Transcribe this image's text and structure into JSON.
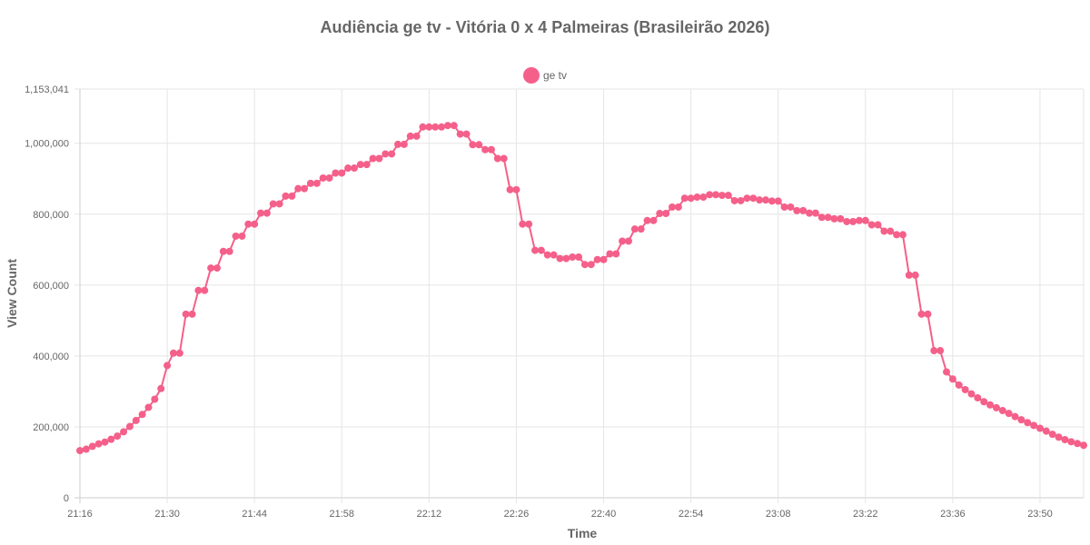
{
  "chart_data": {
    "type": "line",
    "title": "Audiência ge tv - Vitória 0 x 4 Palmeiras (Brasileirão 2026)",
    "xlabel": "Time",
    "ylabel": "View Count",
    "legend_position": "top",
    "grid": true,
    "ylim": [
      0,
      1153041
    ],
    "yticks": [
      "0",
      "200,000",
      "400,000",
      "600,000",
      "800,000",
      "1,000,000",
      "1,153,041"
    ],
    "ytick_values": [
      0,
      200000,
      400000,
      600000,
      800000,
      1000000,
      1153041
    ],
    "xtick_labels": [
      "21:16",
      "21:30",
      "21:44",
      "21:58",
      "22:12",
      "22:26",
      "22:40",
      "22:54",
      "23:08",
      "23:22",
      "23:36",
      "23:50"
    ],
    "x_start": "21:16",
    "x_end": "23:56",
    "series": [
      {
        "name": "ge tv",
        "color": "#f4608a",
        "values": [
          133000,
          137000,
          145000,
          152000,
          157000,
          165000,
          174000,
          186000,
          201000,
          218000,
          235000,
          255000,
          278000,
          308000,
          373000,
          408000,
          408000,
          518000,
          518000,
          585000,
          585000,
          648000,
          648000,
          695000,
          695000,
          738000,
          738000,
          772000,
          772000,
          803000,
          803000,
          829000,
          829000,
          851000,
          851000,
          872000,
          872000,
          887000,
          887000,
          902000,
          902000,
          916000,
          916000,
          930000,
          930000,
          940000,
          940000,
          957000,
          957000,
          970000,
          970000,
          997000,
          997000,
          1020000,
          1020000,
          1046000,
          1046000,
          1046000,
          1046000,
          1050000,
          1050000,
          1026000,
          1026000,
          996000,
          996000,
          982000,
          982000,
          957000,
          957000,
          869000,
          869000,
          772000,
          772000,
          698000,
          698000,
          685000,
          685000,
          675000,
          675000,
          679000,
          679000,
          658000,
          658000,
          672000,
          672000,
          688000,
          688000,
          724000,
          724000,
          758000,
          758000,
          782000,
          782000,
          802000,
          802000,
          820000,
          820000,
          845000,
          845000,
          848000,
          848000,
          855000,
          855000,
          853000,
          853000,
          838000,
          838000,
          845000,
          845000,
          840000,
          840000,
          837000,
          837000,
          820000,
          820000,
          810000,
          810000,
          803000,
          803000,
          791000,
          791000,
          787000,
          787000,
          779000,
          779000,
          782000,
          782000,
          770000,
          770000,
          752000,
          752000,
          742000,
          742000,
          628000,
          628000,
          518000,
          518000,
          415000,
          415000,
          355000,
          335000,
          318000,
          305000,
          293000,
          282000,
          271000,
          262000,
          254000,
          246000,
          238000,
          229000,
          220000,
          212000,
          204000,
          196000,
          188000,
          179000,
          171000,
          164000,
          158000,
          153000,
          148000
        ]
      }
    ]
  }
}
